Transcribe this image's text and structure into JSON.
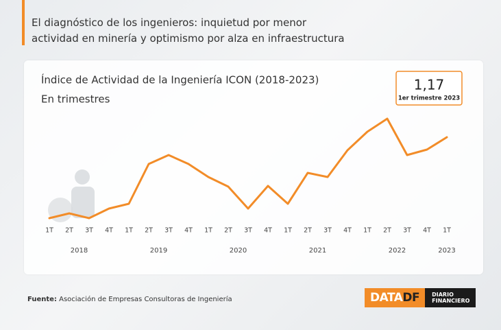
{
  "header": {
    "lines": [
      "El diagnóstico de los ingenieros: inquietud por menor",
      "actividad en minería y optimismo por alza en infraestructura"
    ]
  },
  "chart_data": {
    "type": "line",
    "title": "Índice de Actividad de la Ingeniería ICON (2018-2023)",
    "subtitle": "En trimestres",
    "categories": [
      "1T",
      "2T",
      "3T",
      "4T",
      "1T",
      "2T",
      "3T",
      "4T",
      "1T",
      "2T",
      "3T",
      "4T",
      "1T",
      "2T",
      "3T",
      "4T",
      "1T",
      "2T",
      "3T",
      "4T",
      "1T"
    ],
    "groups": [
      {
        "label": "2018",
        "count": 4
      },
      {
        "label": "2019",
        "count": 4
      },
      {
        "label": "2020",
        "count": 4
      },
      {
        "label": "2021",
        "count": 4
      },
      {
        "label": "2022",
        "count": 4
      },
      {
        "label": "2023",
        "count": 1
      }
    ],
    "values": [
      0.58,
      0.615,
      0.58,
      0.65,
      0.685,
      0.975,
      1.04,
      0.975,
      0.88,
      0.81,
      0.65,
      0.815,
      0.685,
      0.91,
      0.88,
      1.075,
      1.21,
      1.305,
      1.04,
      1.08,
      1.17
    ],
    "value_labels": [
      null,
      null,
      null,
      null,
      null,
      null,
      null,
      null,
      null,
      null,
      null,
      null,
      null,
      null,
      null,
      null,
      null,
      null,
      null,
      null,
      "1,17"
    ],
    "annotation": "1er trimestre 2023",
    "color": "#f28c28",
    "ylim": [
      0.5,
      1.35
    ]
  },
  "footer": {
    "source_label": "Fuente:",
    "source": "Asociación de Empresas Consultoras de Ingeniería",
    "brand": [
      "DATA",
      "DF",
      "DIARIO",
      "FINANCIERO"
    ]
  }
}
